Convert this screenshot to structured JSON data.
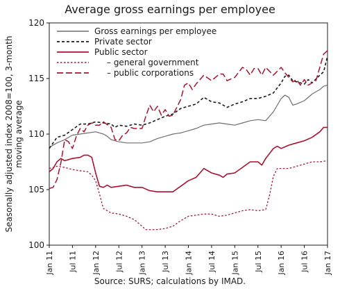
{
  "chart_data": {
    "type": "line",
    "title": "Average gross earnings per employee",
    "ylabel": "Seasonally adjusted index 2008=100, 3-month moving average",
    "xlabel": "",
    "source": "Source: SURS; calculations by IMAD.",
    "ylim": [
      100,
      120
    ],
    "yticks": [
      100,
      105,
      110,
      115,
      120
    ],
    "grid": false,
    "legend_position": "top-left",
    "x_ticks": [
      "Jan 11",
      "Jul 11",
      "Jan 12",
      "Jul 12",
      "Jan 13",
      "Jul 13",
      "Jan 14",
      "Jul 14",
      "Jan 15",
      "Jul 15",
      "Jan 16",
      "Jul 16",
      "Jan 17"
    ],
    "series": [
      {
        "name": "Gross earnings per employee",
        "color": "#6e6e6e",
        "style": "solid",
        "width": 1.2,
        "values": [
          [
            0,
            108.8
          ],
          [
            2,
            109.2
          ],
          [
            4,
            109.5
          ],
          [
            6,
            109.9
          ],
          [
            8,
            110.0
          ],
          [
            10,
            110.1
          ],
          [
            12,
            110.2
          ],
          [
            14,
            110.0
          ],
          [
            15,
            109.8
          ],
          [
            16,
            109.5
          ],
          [
            18,
            109.3
          ],
          [
            20,
            109.2
          ],
          [
            22,
            109.2
          ],
          [
            24,
            109.2
          ],
          [
            26,
            109.3
          ],
          [
            28,
            109.6
          ],
          [
            30,
            109.8
          ],
          [
            32,
            110.0
          ],
          [
            34,
            110.1
          ],
          [
            36,
            110.3
          ],
          [
            38,
            110.5
          ],
          [
            40,
            110.8
          ],
          [
            42,
            110.9
          ],
          [
            44,
            111.0
          ],
          [
            46,
            110.9
          ],
          [
            48,
            110.8
          ],
          [
            50,
            111.0
          ],
          [
            52,
            111.2
          ],
          [
            54,
            111.3
          ],
          [
            56,
            111.2
          ],
          [
            58,
            112.0
          ],
          [
            60,
            113.2
          ],
          [
            61,
            113.5
          ],
          [
            62,
            113.3
          ],
          [
            63,
            112.6
          ],
          [
            64,
            112.7
          ],
          [
            66,
            113.0
          ],
          [
            68,
            113.6
          ],
          [
            70,
            114.0
          ],
          [
            71,
            114.3
          ],
          [
            72,
            114.4
          ]
        ]
      },
      {
        "name": "Private sector",
        "color": "#1a1a1a",
        "style": "dashed",
        "width": 1.6,
        "values": [
          [
            0,
            108.7
          ],
          [
            2,
            109.7
          ],
          [
            4,
            109.9
          ],
          [
            6,
            110.4
          ],
          [
            8,
            110.9
          ],
          [
            10,
            110.9
          ],
          [
            12,
            111.1
          ],
          [
            14,
            111.0
          ],
          [
            16,
            110.9
          ],
          [
            17,
            110.6
          ],
          [
            18,
            110.8
          ],
          [
            20,
            110.7
          ],
          [
            22,
            110.9
          ],
          [
            24,
            110.8
          ],
          [
            26,
            111.0
          ],
          [
            28,
            111.3
          ],
          [
            30,
            111.6
          ],
          [
            32,
            111.8
          ],
          [
            34,
            112.3
          ],
          [
            36,
            112.5
          ],
          [
            38,
            112.7
          ],
          [
            40,
            113.3
          ],
          [
            42,
            112.9
          ],
          [
            44,
            112.8
          ],
          [
            46,
            112.4
          ],
          [
            48,
            112.7
          ],
          [
            50,
            112.9
          ],
          [
            52,
            113.2
          ],
          [
            54,
            113.2
          ],
          [
            56,
            113.4
          ],
          [
            58,
            113.7
          ],
          [
            60,
            114.6
          ],
          [
            61,
            115.2
          ],
          [
            62,
            115.3
          ],
          [
            63,
            114.8
          ],
          [
            64,
            114.7
          ],
          [
            66,
            114.5
          ],
          [
            67,
            114.9
          ],
          [
            68,
            114.6
          ],
          [
            70,
            115.3
          ],
          [
            71,
            115.6
          ],
          [
            72,
            117.0
          ]
        ]
      },
      {
        "name": "Public sector",
        "color": "#a8122f",
        "style": "solid",
        "width": 1.6,
        "values": [
          [
            0,
            106.6
          ],
          [
            1,
            106.9
          ],
          [
            2,
            107.5
          ],
          [
            3,
            107.8
          ],
          [
            4,
            107.6
          ],
          [
            6,
            107.8
          ],
          [
            8,
            107.9
          ],
          [
            9,
            108.1
          ],
          [
            10,
            108.1
          ],
          [
            11,
            107.9
          ],
          [
            12,
            106.5
          ],
          [
            13,
            105.3
          ],
          [
            14,
            105.2
          ],
          [
            15,
            105.4
          ],
          [
            16,
            105.2
          ],
          [
            18,
            105.3
          ],
          [
            20,
            105.4
          ],
          [
            22,
            105.2
          ],
          [
            24,
            105.2
          ],
          [
            26,
            104.9
          ],
          [
            28,
            104.8
          ],
          [
            30,
            104.8
          ],
          [
            32,
            104.8
          ],
          [
            34,
            105.3
          ],
          [
            36,
            105.8
          ],
          [
            38,
            106.1
          ],
          [
            40,
            106.9
          ],
          [
            42,
            106.5
          ],
          [
            44,
            106.3
          ],
          [
            45,
            106.1
          ],
          [
            46,
            106.4
          ],
          [
            48,
            106.5
          ],
          [
            50,
            107.0
          ],
          [
            52,
            107.5
          ],
          [
            54,
            107.5
          ],
          [
            55,
            107.2
          ],
          [
            56,
            107.8
          ],
          [
            58,
            108.7
          ],
          [
            59,
            108.9
          ],
          [
            60,
            108.7
          ],
          [
            62,
            109.0
          ],
          [
            64,
            109.2
          ],
          [
            66,
            109.4
          ],
          [
            68,
            109.7
          ],
          [
            70,
            110.2
          ],
          [
            71,
            110.6
          ],
          [
            72,
            110.6
          ]
        ]
      },
      {
        "name": "– general government",
        "color": "#a8122f",
        "style": "dotted",
        "width": 1.3,
        "values": [
          [
            0,
            106.9
          ],
          [
            2,
            107.1
          ],
          [
            4,
            107.0
          ],
          [
            6,
            106.8
          ],
          [
            8,
            106.7
          ],
          [
            10,
            106.6
          ],
          [
            11,
            106.3
          ],
          [
            12,
            105.8
          ],
          [
            13,
            104.6
          ],
          [
            14,
            103.3
          ],
          [
            16,
            102.9
          ],
          [
            18,
            102.8
          ],
          [
            20,
            102.6
          ],
          [
            22,
            102.3
          ],
          [
            24,
            101.7
          ],
          [
            25,
            101.4
          ],
          [
            26,
            101.4
          ],
          [
            28,
            101.4
          ],
          [
            30,
            101.5
          ],
          [
            32,
            101.7
          ],
          [
            34,
            102.2
          ],
          [
            36,
            102.6
          ],
          [
            38,
            102.7
          ],
          [
            40,
            102.8
          ],
          [
            42,
            102.8
          ],
          [
            44,
            102.6
          ],
          [
            46,
            102.7
          ],
          [
            48,
            102.9
          ],
          [
            50,
            103.1
          ],
          [
            52,
            103.2
          ],
          [
            54,
            103.1
          ],
          [
            56,
            103.2
          ],
          [
            57,
            104.5
          ],
          [
            58,
            106.2
          ],
          [
            59,
            106.9
          ],
          [
            60,
            106.9
          ],
          [
            62,
            106.9
          ],
          [
            64,
            107.1
          ],
          [
            66,
            107.3
          ],
          [
            68,
            107.5
          ],
          [
            70,
            107.5
          ],
          [
            72,
            107.6
          ]
        ]
      },
      {
        "name": "– public corporations",
        "color": "#a8122f",
        "style": "longdash",
        "width": 1.5,
        "values": [
          [
            0,
            105.1
          ],
          [
            1,
            105.2
          ],
          [
            2,
            105.9
          ],
          [
            3,
            107.4
          ],
          [
            4,
            109.5
          ],
          [
            5,
            109.3
          ],
          [
            6,
            108.7
          ],
          [
            7,
            109.8
          ],
          [
            8,
            110.5
          ],
          [
            9,
            110.2
          ],
          [
            10,
            110.8
          ],
          [
            11,
            111.0
          ],
          [
            12,
            110.8
          ],
          [
            13,
            110.8
          ],
          [
            14,
            111.1
          ],
          [
            16,
            110.6
          ],
          [
            17,
            109.5
          ],
          [
            18,
            109.4
          ],
          [
            19,
            109.9
          ],
          [
            20,
            110.1
          ],
          [
            21,
            110.6
          ],
          [
            22,
            110.5
          ],
          [
            24,
            110.5
          ],
          [
            25,
            111.6
          ],
          [
            26,
            112.6
          ],
          [
            27,
            112.0
          ],
          [
            28,
            112.5
          ],
          [
            29,
            111.7
          ],
          [
            30,
            112.2
          ],
          [
            31,
            111.6
          ],
          [
            32,
            111.7
          ],
          [
            34,
            113.1
          ],
          [
            35,
            114.4
          ],
          [
            36,
            114.6
          ],
          [
            37,
            114.0
          ],
          [
            38,
            114.5
          ],
          [
            40,
            115.3
          ],
          [
            42,
            114.8
          ],
          [
            44,
            115.4
          ],
          [
            45,
            115.4
          ],
          [
            46,
            114.8
          ],
          [
            48,
            115.1
          ],
          [
            50,
            116.0
          ],
          [
            51,
            115.8
          ],
          [
            52,
            115.3
          ],
          [
            53,
            115.9
          ],
          [
            54,
            115.9
          ],
          [
            55,
            115.3
          ],
          [
            56,
            116.0
          ],
          [
            58,
            115.3
          ],
          [
            60,
            116.0
          ],
          [
            61,
            115.5
          ],
          [
            62,
            115.1
          ],
          [
            63,
            114.7
          ],
          [
            64,
            114.9
          ],
          [
            65,
            114.4
          ],
          [
            66,
            114.9
          ],
          [
            67,
            114.4
          ],
          [
            68,
            114.6
          ],
          [
            69,
            114.8
          ],
          [
            70,
            116.0
          ],
          [
            71,
            117.2
          ],
          [
            72,
            117.5
          ]
        ]
      }
    ]
  }
}
